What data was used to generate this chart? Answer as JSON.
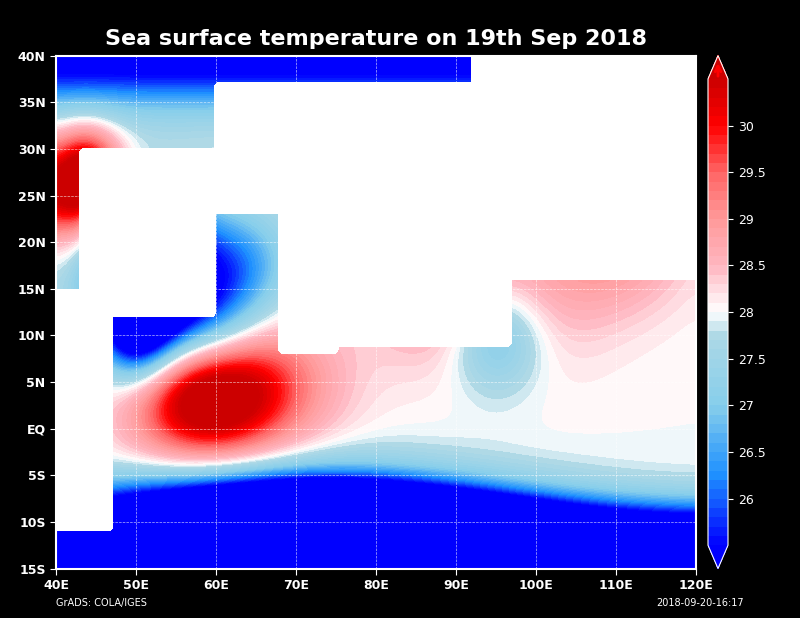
{
  "title": "Sea surface temperature on 19th Sep 2018",
  "xlabel_ticks": [
    "40E",
    "50E",
    "60E",
    "70E",
    "80E",
    "90E",
    "100E",
    "110E",
    "120E"
  ],
  "ylabel_ticks": [
    "15S",
    "10S",
    "5S",
    "EQ",
    "5N",
    "10N",
    "15N",
    "20N",
    "25N",
    "30N",
    "35N",
    "40N"
  ],
  "lon_range": [
    40,
    120
  ],
  "lat_range": [
    -15,
    40
  ],
  "colorbar_ticks": [
    26,
    26.5,
    27,
    27.5,
    28,
    28.5,
    29,
    29.5,
    30
  ],
  "vmin": 25.5,
  "vmax": 30.5,
  "background_color": "#000000",
  "plot_bg_color": "#ffffff",
  "title_color": "#ffffff",
  "title_fontsize": 16,
  "tick_color": "#ffffff",
  "grid_color": "#ffffff",
  "colorbar_label_color": "#ffffff",
  "footer_left": "GrADS: COLA/IGES",
  "footer_right": "2018-09-20-16:17"
}
